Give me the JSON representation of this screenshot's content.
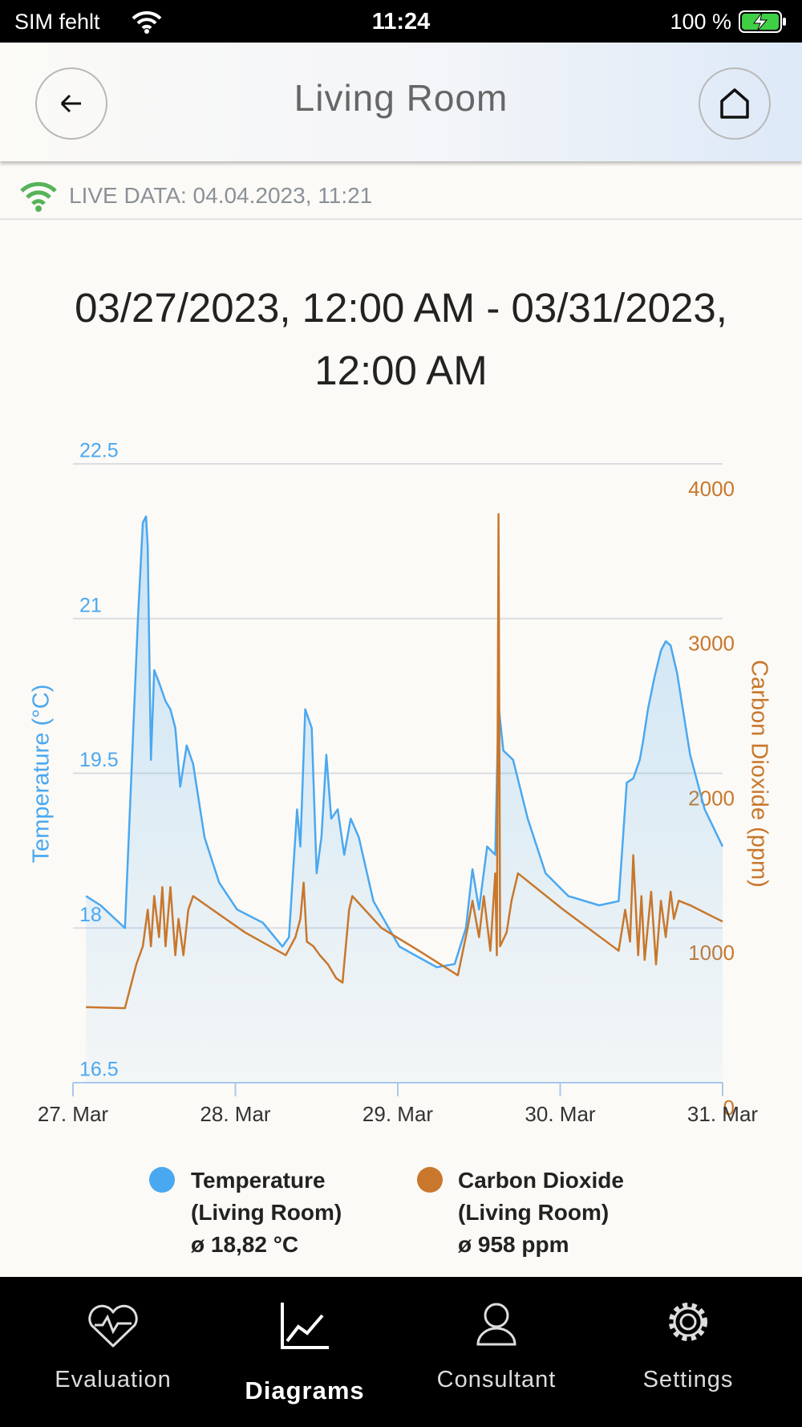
{
  "status_bar": {
    "carrier": "SIM fehlt",
    "time": "11:24",
    "battery": "100 %"
  },
  "header": {
    "title": "Living Room"
  },
  "live_data": "LIVE DATA: 04.04.2023, 11:21",
  "date_range": "03/27/2023, 12:00 AM - 03/31/2023, 12:00 AM",
  "chart_data": {
    "type": "line",
    "ylabel": "Temperature (°C)",
    "y2label": "Carbon Dioxide (ppm)",
    "xlim": [
      0,
      4
    ],
    "xticks": [
      {
        "value": 0,
        "label": "27. Mar"
      },
      {
        "value": 1,
        "label": "28. Mar"
      },
      {
        "value": 2,
        "label": "29. Mar"
      },
      {
        "value": 3,
        "label": "30. Mar"
      },
      {
        "value": 4,
        "label": "31. Mar"
      }
    ],
    "ylim": [
      16.5,
      22.5
    ],
    "yticks": [
      16.5,
      18,
      19.5,
      21,
      22.5
    ],
    "y2lim": [
      0,
      4000
    ],
    "y2ticks": [
      0,
      1000,
      2000,
      3000,
      4000
    ],
    "grid": true,
    "series": [
      {
        "name": "Temperature (Living Room)",
        "average": "ø 18,82 °C",
        "color": "#4aa8f0",
        "area": true,
        "x": [
          0.08,
          0.17,
          0.32,
          0.36,
          0.4,
          0.43,
          0.45,
          0.46,
          0.48,
          0.5,
          0.53,
          0.57,
          0.6,
          0.63,
          0.66,
          0.7,
          0.74,
          0.81,
          0.9,
          1.01,
          1.17,
          1.29,
          1.33,
          1.38,
          1.4,
          1.43,
          1.47,
          1.5,
          1.53,
          1.56,
          1.59,
          1.63,
          1.67,
          1.71,
          1.76,
          1.85,
          2.01,
          2.24,
          2.35,
          2.42,
          2.46,
          2.5,
          2.55,
          2.6,
          2.62,
          2.65,
          2.71,
          2.8,
          2.91,
          3.05,
          3.24,
          3.36,
          3.41,
          3.45,
          3.49,
          3.51,
          3.54,
          3.58,
          3.62,
          3.65,
          3.68,
          3.72,
          3.8,
          3.89,
          4.0
        ],
        "values": [
          18.31,
          18.22,
          18.0,
          19.5,
          21.0,
          21.93,
          21.99,
          21.7,
          19.63,
          20.5,
          20.38,
          20.2,
          20.12,
          19.94,
          19.37,
          19.77,
          19.59,
          18.88,
          18.44,
          18.18,
          18.05,
          17.82,
          17.91,
          19.15,
          18.79,
          20.12,
          19.94,
          18.53,
          18.88,
          19.68,
          19.06,
          19.15,
          18.71,
          19.06,
          18.88,
          18.26,
          17.82,
          17.62,
          17.65,
          18.0,
          18.57,
          18.18,
          18.79,
          18.71,
          20.16,
          19.72,
          19.63,
          19.06,
          18.53,
          18.31,
          18.22,
          18.26,
          19.41,
          19.45,
          19.63,
          19.81,
          20.12,
          20.43,
          20.69,
          20.78,
          20.74,
          20.47,
          19.68,
          19.15,
          18.79
        ]
      },
      {
        "name": "Carbon Dioxide (Living Room)",
        "average": "ø 958 ppm",
        "color": "#c8772c",
        "axis": "y2",
        "x": [
          0.08,
          0.32,
          0.39,
          0.43,
          0.46,
          0.48,
          0.5,
          0.53,
          0.55,
          0.57,
          0.6,
          0.63,
          0.65,
          0.68,
          0.71,
          0.74,
          0.9,
          1.06,
          1.31,
          1.37,
          1.4,
          1.42,
          1.44,
          1.48,
          1.52,
          1.57,
          1.62,
          1.66,
          1.7,
          1.72,
          1.9,
          2.13,
          2.37,
          2.43,
          2.46,
          2.5,
          2.53,
          2.57,
          2.6,
          2.61,
          2.62,
          2.63,
          2.67,
          2.7,
          2.74,
          3.02,
          3.36,
          3.4,
          3.43,
          3.45,
          3.48,
          3.5,
          3.52,
          3.56,
          3.59,
          3.62,
          3.65,
          3.68,
          3.7,
          3.73,
          3.8,
          4.0
        ],
        "values": [
          488,
          482,
          765,
          882,
          1118,
          882,
          1206,
          941,
          1265,
          882,
          1265,
          824,
          1059,
          824,
          1118,
          1206,
          1088,
          971,
          824,
          941,
          1059,
          1294,
          912,
          882,
          824,
          765,
          676,
          647,
          1118,
          1206,
          1000,
          853,
          694,
          1000,
          1176,
          941,
          1206,
          853,
          1353,
          824,
          3676,
          882,
          971,
          1176,
          1353,
          1118,
          853,
          1118,
          912,
          1471,
          824,
          1206,
          794,
          1235,
          765,
          1176,
          941,
          1235,
          1059,
          1176,
          1147,
          1041
        ]
      }
    ]
  },
  "nav": {
    "items": [
      "Evaluation",
      "Diagrams",
      "Consultant",
      "Settings"
    ],
    "active": 1
  }
}
